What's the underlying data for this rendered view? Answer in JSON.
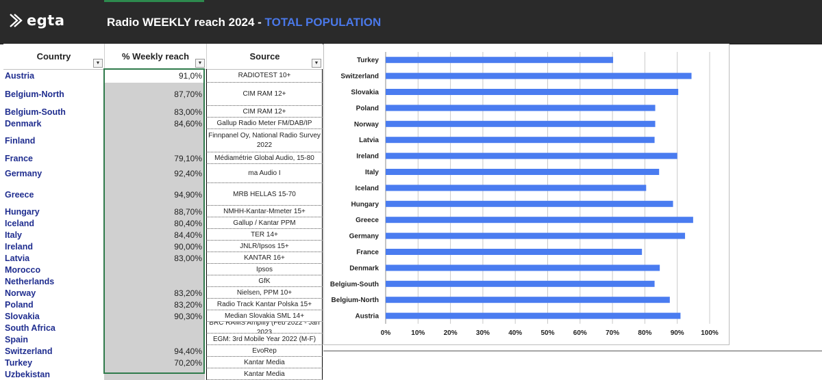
{
  "header": {
    "logo_text": "egta",
    "title_main": "Radio WEEKLY reach 2024 - ",
    "title_highlight": "TOTAL POPULATION",
    "highlight_color": "#4a78e8"
  },
  "table": {
    "columns": [
      "Country",
      "% Weekly reach",
      "Source"
    ],
    "rows": [
      {
        "country": "Austria",
        "reach": "91,0%",
        "source": "RADIOTEST 10+"
      },
      {
        "country": "Belgium-North",
        "reach": "87,70%",
        "source": "CIM RAM 12+"
      },
      {
        "country": "Belgium-South",
        "reach": "83,00%",
        "source": "CIM RAM 12+"
      },
      {
        "country": "Denmark",
        "reach": "84,60%",
        "source": "Gallup Radio Meter FM/DAB/IP"
      },
      {
        "country": "Finland",
        "reach": "",
        "source": "Finnpanel Oy, National Radio Survey 2022"
      },
      {
        "country": "France",
        "reach": "79,10%",
        "source": "Médiamétrie Global Audio, 15-80"
      },
      {
        "country": "Germany",
        "reach": "92,40%",
        "source": "ma  Audio I"
      },
      {
        "country": "Greece",
        "reach": "94,90%",
        "source": "MRB HELLAS 15-70"
      },
      {
        "country": "Hungary",
        "reach": "88,70%",
        "source": "NMHH-Kantar-Mmeter 15+"
      },
      {
        "country": "Iceland",
        "reach": "80,40%",
        "source": "Gallup / Kantar PPM"
      },
      {
        "country": "Italy",
        "reach": "84,40%",
        "source": "TER 14+"
      },
      {
        "country": "Ireland",
        "reach": "90,00%",
        "source": "JNLR/Ipsos 15+"
      },
      {
        "country": "Latvia",
        "reach": "83,00%",
        "source": "KANTAR 16+"
      },
      {
        "country": "Morocco",
        "reach": "",
        "source": "Ipsos"
      },
      {
        "country": "Netherlands",
        "reach": "",
        "source": "GfK"
      },
      {
        "country": "Norway",
        "reach": "83,20%",
        "source": "Nielsen, PPM 10+"
      },
      {
        "country": "Poland",
        "reach": "83,20%",
        "source": "Radio Track Kantar Polska 15+"
      },
      {
        "country": "Slovakia",
        "reach": "90,30%",
        "source": "Median Slovakia SML 14+"
      },
      {
        "country": "South Africa",
        "reach": "",
        "source": "BRC RAMS Amplify (Feb 2022 - Jan 2023"
      },
      {
        "country": "Spain",
        "reach": "",
        "source": "EGM: 3rd Mobile Year 2022 (M-F)"
      },
      {
        "country": "Switzerland",
        "reach": "94,40%",
        "source": "EvoRep"
      },
      {
        "country": "Turkey",
        "reach": "70,20%",
        "source": "Kantar Media"
      },
      {
        "country": "Uzbekistan",
        "reach": "",
        "source": "Kantar Media"
      }
    ]
  },
  "chart_data": {
    "type": "bar",
    "orientation": "horizontal",
    "categories": [
      "Turkey",
      "Switzerland",
      "Slovakia",
      "Poland",
      "Norway",
      "Latvia",
      "Ireland",
      "Italy",
      "Iceland",
      "Hungary",
      "Greece",
      "Germany",
      "France",
      "Denmark",
      "Belgium-South",
      "Belgium-North",
      "Austria"
    ],
    "values": [
      70.2,
      94.4,
      90.3,
      83.2,
      83.2,
      83.0,
      90.0,
      84.4,
      80.4,
      88.7,
      94.9,
      92.4,
      79.1,
      84.6,
      83.0,
      87.7,
      91.0
    ],
    "xlim": [
      0,
      100
    ],
    "xticks": [
      "0%",
      "10%",
      "20%",
      "30%",
      "40%",
      "50%",
      "60%",
      "70%",
      "80%",
      "90%",
      "100%"
    ],
    "grid": true,
    "bar_color": "#4a7cf0",
    "title": "",
    "xlabel": "",
    "ylabel": ""
  }
}
